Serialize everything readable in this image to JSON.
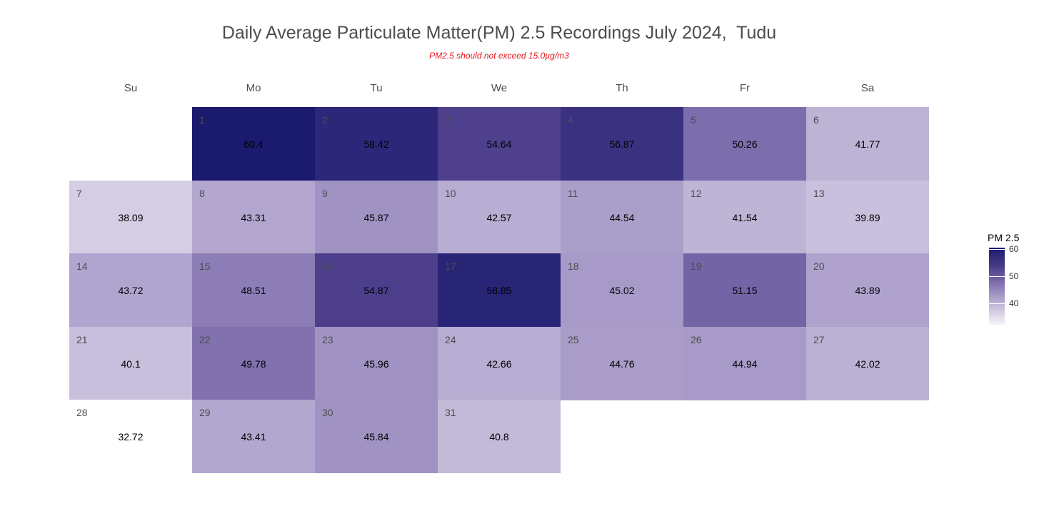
{
  "chart_data": {
    "type": "heatmap",
    "title": "Daily Average Particulate Matter(PM) 2.5 Recordings July 2024,  Tudu",
    "subtitle": "PM2.5 should not exceed 15.0µg/m3",
    "weekdays": [
      "Su",
      "Mo",
      "Tu",
      "We",
      "Th",
      "Fr",
      "Sa"
    ],
    "first_weekday_index": 1,
    "days": [
      {
        "day": "1",
        "value": 60.4
      },
      {
        "day": "2",
        "value": 58.42
      },
      {
        "day": "3",
        "value": 54.64
      },
      {
        "day": "4",
        "value": 56.87
      },
      {
        "day": "5",
        "value": 50.26
      },
      {
        "day": "6",
        "value": 41.77
      },
      {
        "day": "7",
        "value": 38.09
      },
      {
        "day": "8",
        "value": 43.31
      },
      {
        "day": "9",
        "value": 45.87
      },
      {
        "day": "10",
        "value": 42.57
      },
      {
        "day": "11",
        "value": 44.54
      },
      {
        "day": "12",
        "value": 41.54
      },
      {
        "day": "13",
        "value": 39.89
      },
      {
        "day": "14",
        "value": 43.72
      },
      {
        "day": "15",
        "value": 48.51
      },
      {
        "day": "16",
        "value": 54.87
      },
      {
        "day": "17",
        "value": 58.85
      },
      {
        "day": "18",
        "value": 45.02
      },
      {
        "day": "19",
        "value": 51.15
      },
      {
        "day": "20",
        "value": 43.89
      },
      {
        "day": "21",
        "value": 40.1
      },
      {
        "day": "22",
        "value": 49.78
      },
      {
        "day": "23",
        "value": 45.96
      },
      {
        "day": "24",
        "value": 42.66
      },
      {
        "day": "25",
        "value": 44.76
      },
      {
        "day": "26",
        "value": 44.94
      },
      {
        "day": "27",
        "value": 42.02
      },
      {
        "day": "28",
        "value": 32.72
      },
      {
        "day": "29",
        "value": 43.41
      },
      {
        "day": "30",
        "value": 45.84
      },
      {
        "day": "31",
        "value": 40.8
      }
    ],
    "legend": {
      "title": "PM 2.5",
      "ticks": [
        60,
        50,
        40
      ],
      "range": [
        32.72,
        60.4
      ],
      "colors": [
        "#ffffff",
        "#1a1a6e"
      ]
    }
  }
}
